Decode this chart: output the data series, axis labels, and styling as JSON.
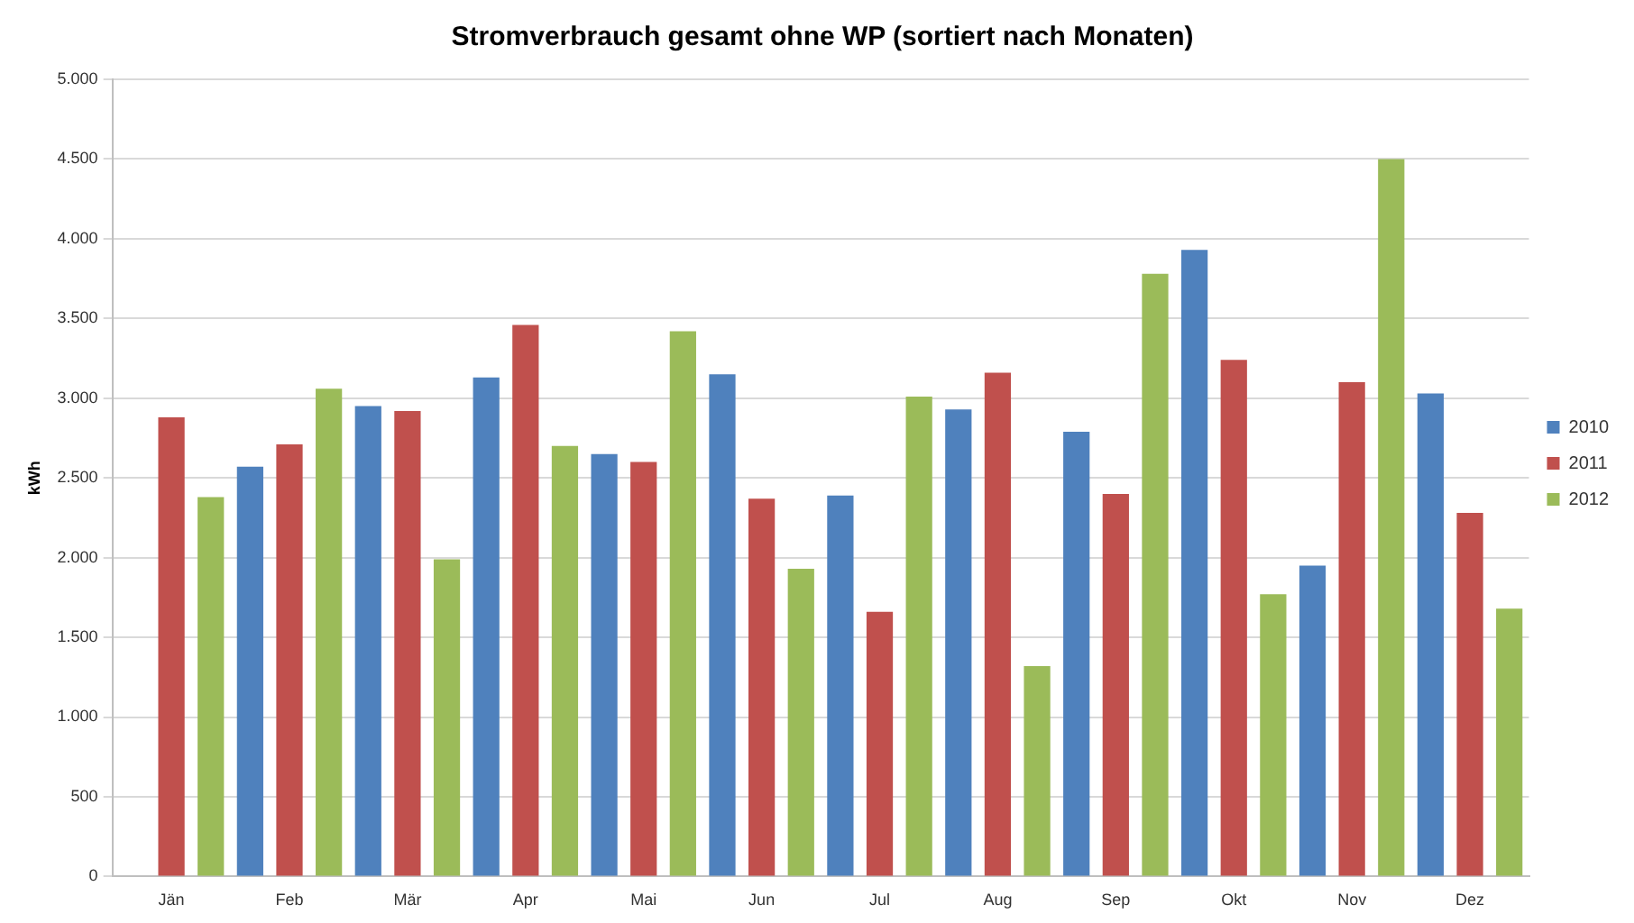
{
  "chart_data": {
    "type": "bar",
    "title": "Stromverbrauch gesamt ohne WP (sortiert nach Monaten)",
    "ylabel": "kWh",
    "categories": [
      "Jän",
      "Feb",
      "Mär",
      "Apr",
      "Mai",
      "Jun",
      "Jul",
      "Aug",
      "Sep",
      "Okt",
      "Nov",
      "Dez"
    ],
    "series": [
      {
        "name": "2010",
        "color": "#4f81bd",
        "values": [
          null,
          2570,
          2950,
          3130,
          2650,
          3150,
          2390,
          2930,
          2790,
          3930,
          1950,
          3030
        ]
      },
      {
        "name": "2011",
        "color": "#c0504d",
        "values": [
          2880,
          2710,
          2920,
          3460,
          2600,
          2370,
          1660,
          3160,
          2400,
          3240,
          3100,
          2280
        ]
      },
      {
        "name": "2012",
        "color": "#9bbb59",
        "values": [
          2380,
          3060,
          1990,
          2700,
          3420,
          1930,
          3010,
          1320,
          3780,
          1770,
          4500,
          1680
        ]
      }
    ],
    "ylim": [
      0,
      5000
    ],
    "yticks": [
      0,
      500,
      {
        "value": 1000,
        "label": "1.000"
      },
      {
        "value": 1500,
        "label": "1.500"
      },
      {
        "value": 2000,
        "label": "2.000"
      },
      {
        "value": 2500,
        "label": "2.500"
      },
      {
        "value": 3000,
        "label": "3.000"
      },
      {
        "value": 3500,
        "label": "3.500"
      },
      {
        "value": 4000,
        "label": "4.000"
      },
      {
        "value": 4500,
        "label": "4.500"
      },
      {
        "value": 5000,
        "label": "5.000"
      }
    ],
    "grid": "y",
    "legend": "right"
  }
}
